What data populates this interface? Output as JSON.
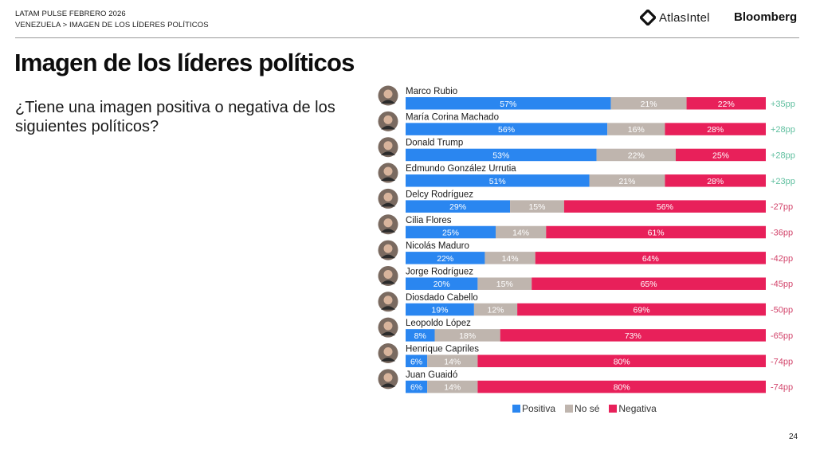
{
  "header": {
    "line1": "LATAM PULSE FEBRERO 2026",
    "breadcrumb": "VENEZUELA > IMAGEN DE LOS LÍDERES POLÍTICOS",
    "brand_atlas": "AtlasIntel",
    "brand_bloomberg": "Bloomberg"
  },
  "title": "Imagen de los líderes políticos",
  "question": "¿Tiene una imagen positiva o negativa de los siguientes políticos?",
  "page_number": "24",
  "colors": {
    "positive": "#2a86f0",
    "unknown": "#bfb5ae",
    "negative": "#e8205a",
    "net_positive": "#5fbf9f",
    "net_negative": "#d2436a"
  },
  "legend": [
    {
      "label": "Positiva",
      "key": "positive"
    },
    {
      "label": "No sé",
      "key": "unknown"
    },
    {
      "label": "Negativa",
      "key": "negative"
    }
  ],
  "chart_data": {
    "type": "bar",
    "orientation": "horizontal",
    "stacked": true,
    "title": "Imagen de los líderes políticos",
    "xlabel": "",
    "ylabel": "",
    "xlim": [
      0,
      100
    ],
    "legend_position": "bottom",
    "grid": false,
    "categories": [
      "Marco Rubio",
      "María Corina Machado",
      "Donald Trump",
      "Edmundo González Urrutia",
      "Delcy Rodríguez",
      "Cilia Flores",
      "Nicolás Maduro",
      "Jorge Rodríguez",
      "Diosdado Cabello",
      "Leopoldo López",
      "Henrique Capriles",
      "Juan Guaidó"
    ],
    "series": [
      {
        "name": "Positiva",
        "values": [
          57,
          56,
          53,
          51,
          29,
          25,
          22,
          20,
          19,
          8,
          6,
          6
        ]
      },
      {
        "name": "No sé",
        "values": [
          21,
          16,
          22,
          21,
          15,
          14,
          14,
          15,
          12,
          18,
          14,
          14
        ]
      },
      {
        "name": "Negativa",
        "values": [
          22,
          28,
          25,
          28,
          56,
          61,
          64,
          65,
          69,
          73,
          80,
          80
        ]
      }
    ],
    "net_labels": [
      "+35pp",
      "+28pp",
      "+28pp",
      "+23pp",
      "-27pp",
      "-36pp",
      "-42pp",
      "-45pp",
      "-50pp",
      "-65pp",
      "-74pp",
      "-74pp"
    ],
    "value_suffix": "%"
  }
}
